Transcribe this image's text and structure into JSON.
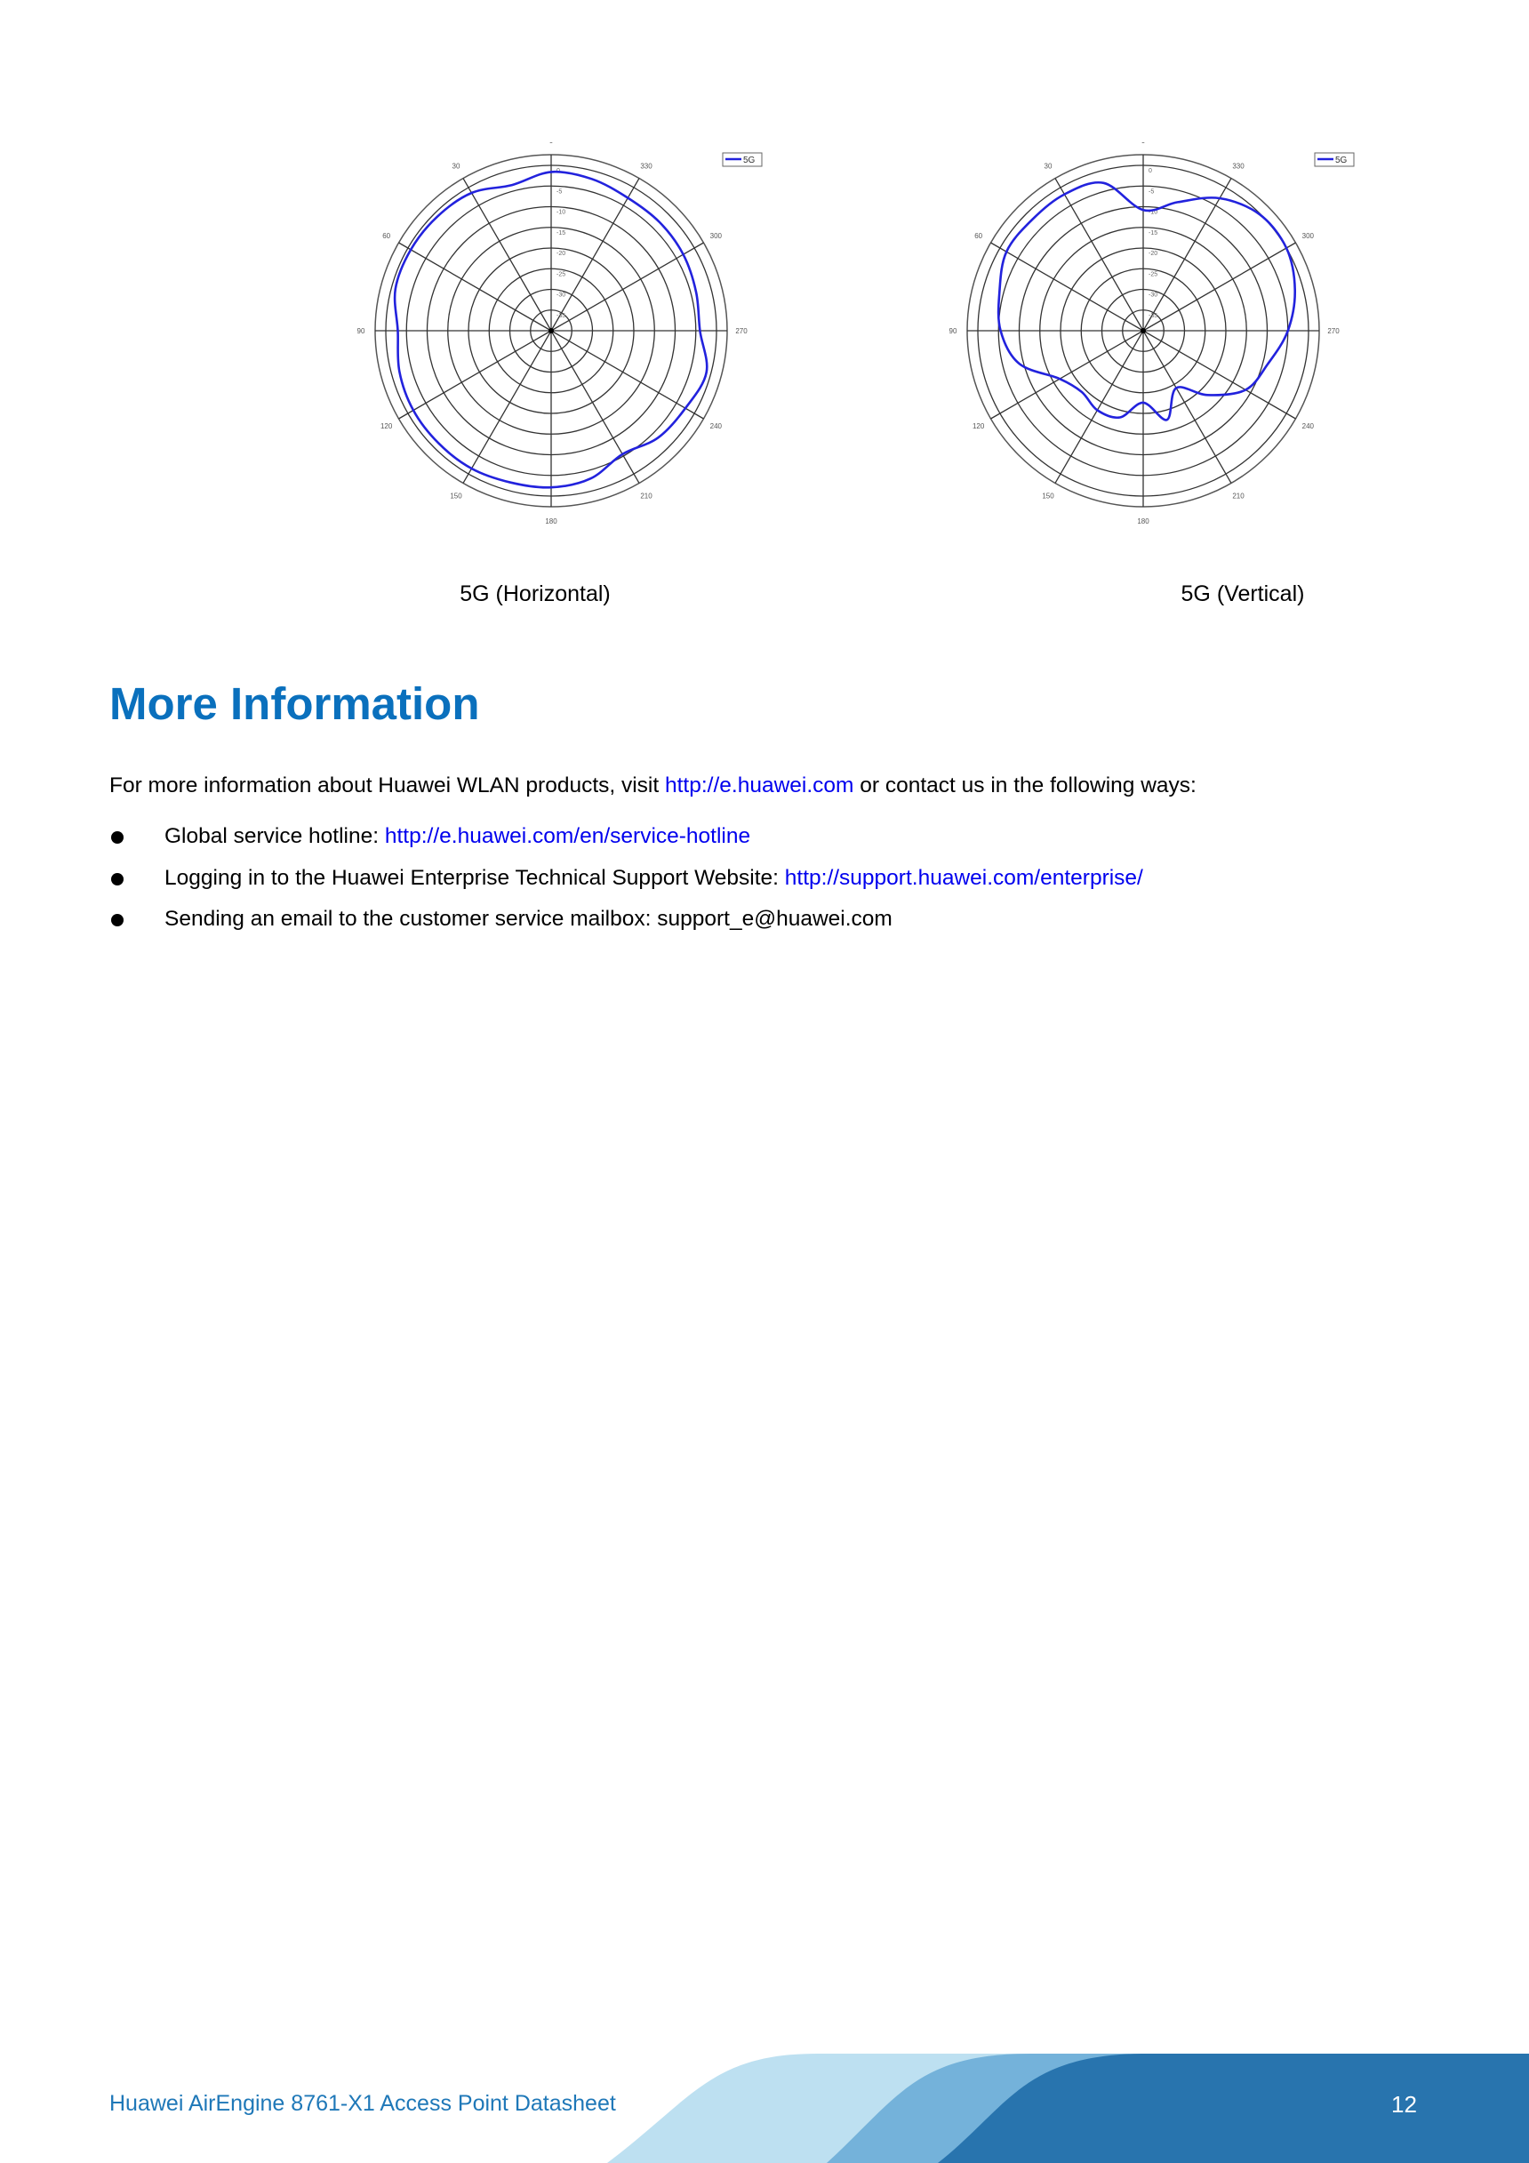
{
  "chart_data": [
    {
      "type": "polar",
      "caption": "5G (Horizontal)",
      "legend": {
        "entries": [
          "5G"
        ],
        "placement": "top-right"
      },
      "angle_ticks": [
        "0",
        "30",
        "60",
        "90",
        "120",
        "150",
        "180",
        "210",
        "240",
        "270",
        "300",
        "330"
      ],
      "angle_direction": "counterclockwise from top",
      "radial_ticks": [
        "0",
        "-5",
        "-10",
        "-15",
        "-20",
        "-25",
        "-30",
        "-35"
      ],
      "rlim": [
        -40,
        0
      ],
      "grid": true,
      "series": [
        {
          "name": "5G",
          "color": "#2222dd",
          "angles": [
            0,
            15,
            30,
            45,
            60,
            75,
            90,
            105,
            120,
            135,
            150,
            165,
            180,
            195,
            210,
            225,
            240,
            255,
            270,
            285,
            300,
            315,
            330,
            345
          ],
          "values": [
            -1.6,
            -3.5,
            -1.5,
            -1.0,
            -0.8,
            -1.0,
            -2.9,
            -2.0,
            -1.5,
            -1.5,
            -1.5,
            -2.0,
            -2.1,
            -3.0,
            -5.5,
            -3.4,
            -2.5,
            -1.1,
            -4.0,
            -3.7,
            -3.1,
            -2.9,
            -2.9,
            -2.0
          ]
        }
      ]
    },
    {
      "type": "polar",
      "caption": "5G (Vertical)",
      "legend": {
        "entries": [
          "5G"
        ],
        "placement": "top-right"
      },
      "angle_ticks": [
        "0",
        "30",
        "60",
        "90",
        "120",
        "150",
        "180",
        "210",
        "240",
        "270",
        "300",
        "330"
      ],
      "angle_direction": "counterclockwise from top",
      "radial_ticks": [
        "0",
        "-5",
        "-10",
        "-15",
        "-20",
        "-25",
        "-30",
        "-35"
      ],
      "rlim": [
        -40,
        0
      ],
      "grid": true,
      "series": [
        {
          "name": "5G",
          "color": "#2222dd",
          "angles": [
            0,
            15,
            30,
            45,
            60,
            75,
            90,
            105,
            120,
            135,
            150,
            165,
            180,
            195,
            210,
            225,
            240,
            255,
            270,
            285,
            300,
            315,
            330,
            345
          ],
          "values": [
            -10.8,
            -3.0,
            -1.9,
            -2.0,
            -1.8,
            -4.0,
            -5.5,
            -9.0,
            -16.7,
            -19.0,
            -17.8,
            -18.3,
            -22.6,
            -17.7,
            -24.0,
            -18.0,
            -11.4,
            -8.8,
            -5.0,
            -2.0,
            0.0,
            -0.2,
            -3.0,
            -7.8
          ]
        }
      ]
    }
  ],
  "section": {
    "title": "More Information",
    "intro_before": "For more information about Huawei WLAN products, visit ",
    "intro_link": "http://e.huawei.com",
    "intro_after": " or contact us in the following ways:",
    "bullets": [
      {
        "text": "Global service hotline: ",
        "link": "http://e.huawei.com/en/service-hotline"
      },
      {
        "text": "Logging in to the Huawei Enterprise Technical Support Website: ",
        "link": "http://support.huawei.com/enterprise/"
      },
      {
        "text": "Sending an email to the customer service mailbox: support_e@huawei.com",
        "link": ""
      }
    ]
  },
  "footer": {
    "title": "Huawei AirEngine 8761-X1 Access Point Datasheet",
    "page_number": "12",
    "colors": {
      "light": "#bde0f1",
      "mid": "#74b2da",
      "dark": "#2874ae"
    }
  }
}
